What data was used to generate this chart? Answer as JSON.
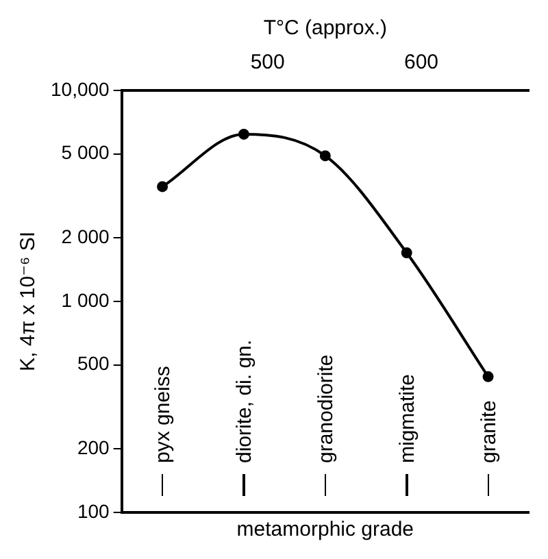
{
  "chart_data": {
    "type": "line",
    "xlabel": "metamorphic grade",
    "ylabel": "K, 4π x 10⁻⁶ SI",
    "x2label": "T°C (approx.)",
    "categories": [
      "pyx gneiss",
      "diorite, di. gn.",
      "granodiorite",
      "migmatite",
      "granite"
    ],
    "values": [
      3500,
      6200,
      4900,
      1700,
      440
    ],
    "color": "#000000",
    "marker": "circle",
    "line_style": "solid",
    "log": "y",
    "ylim": [
      100,
      10000
    ],
    "yticks": [
      100,
      200,
      500,
      {
        "value": 1000,
        "label": "1 000"
      },
      {
        "value": 2000,
        "label": "2 000"
      },
      {
        "value": 5000,
        "label": "5 000"
      },
      {
        "value": 10000,
        "label": "10,000"
      }
    ],
    "x2lim": [
      405,
      670
    ],
    "x2ticks": [
      500,
      600
    ],
    "grid": false,
    "legend": false
  }
}
